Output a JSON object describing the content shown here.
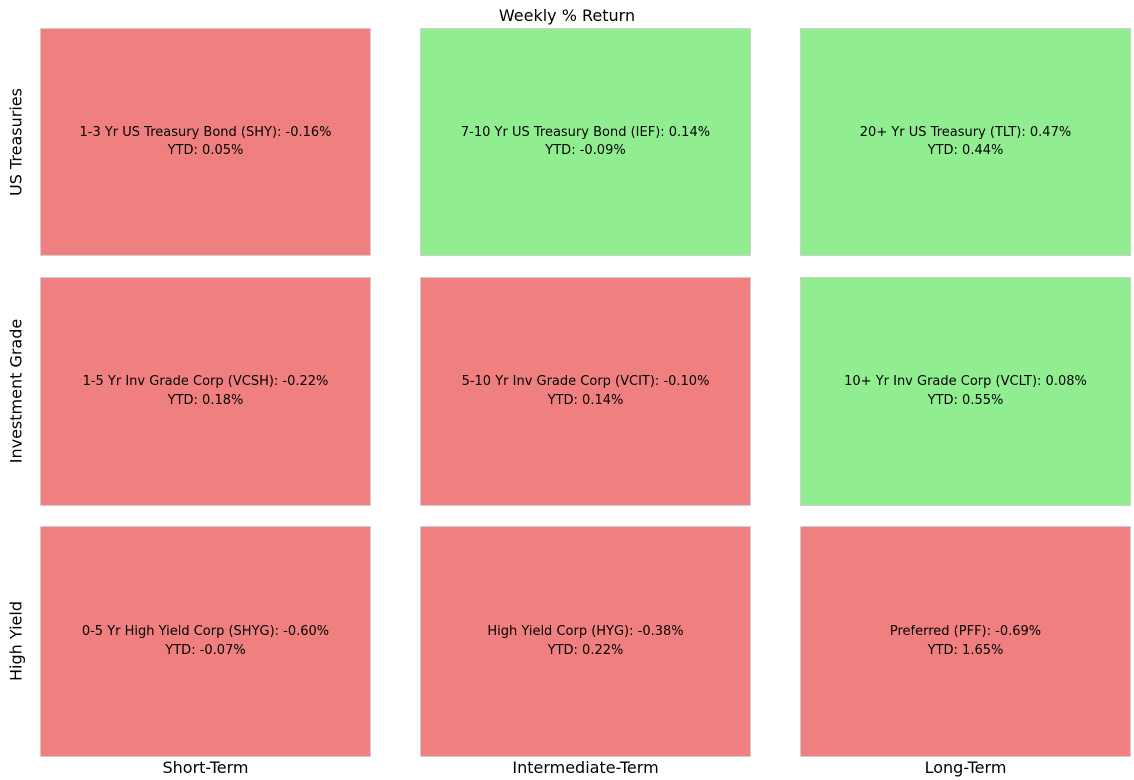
{
  "title": "Weekly % Return",
  "colors": {
    "positive": "#90ee90",
    "negative": "#f08080",
    "background": "#ffffff",
    "text": "#000000"
  },
  "rows": [
    "US Treasuries",
    "Investment Grade",
    "High Yield"
  ],
  "columns": [
    "Short-Term",
    "Intermediate-Term",
    "Long-Term"
  ],
  "chart_data": {
    "type": "heatmap",
    "title": "Weekly % Return",
    "x_categories": [
      "Short-Term",
      "Intermediate-Term",
      "Long-Term"
    ],
    "y_categories": [
      "US Treasuries",
      "Investment Grade",
      "High Yield"
    ],
    "legend": "cell color: green = positive weekly return, red = negative weekly return",
    "cells": [
      {
        "row": "US Treasuries",
        "col": "Short-Term",
        "name": "1-3 Yr US Treasury Bond",
        "ticker": "SHY",
        "weekly_pct": -0.16,
        "ytd_pct": 0.05,
        "label": "1-3 Yr US Treasury Bond (SHY): -0.16%",
        "ytd_label": "YTD: 0.05%",
        "color": "#f08080"
      },
      {
        "row": "US Treasuries",
        "col": "Intermediate-Term",
        "name": "7-10 Yr US Treasury Bond",
        "ticker": "IEF",
        "weekly_pct": 0.14,
        "ytd_pct": -0.09,
        "label": "7-10 Yr US Treasury Bond (IEF): 0.14%",
        "ytd_label": "YTD: -0.09%",
        "color": "#90ee90"
      },
      {
        "row": "US Treasuries",
        "col": "Long-Term",
        "name": "20+ Yr US Treasury",
        "ticker": "TLT",
        "weekly_pct": 0.47,
        "ytd_pct": 0.44,
        "label": "20+ Yr US Treasury (TLT): 0.47%",
        "ytd_label": "YTD: 0.44%",
        "color": "#90ee90"
      },
      {
        "row": "Investment Grade",
        "col": "Short-Term",
        "name": "1-5 Yr Inv Grade Corp",
        "ticker": "VCSH",
        "weekly_pct": -0.22,
        "ytd_pct": 0.18,
        "label": "1-5 Yr Inv Grade Corp (VCSH): -0.22%",
        "ytd_label": "YTD: 0.18%",
        "color": "#f08080"
      },
      {
        "row": "Investment Grade",
        "col": "Intermediate-Term",
        "name": "5-10 Yr Inv Grade Corp",
        "ticker": "VCIT",
        "weekly_pct": -0.1,
        "ytd_pct": 0.14,
        "label": "5-10 Yr Inv Grade Corp (VCIT): -0.10%",
        "ytd_label": "YTD: 0.14%",
        "color": "#f08080"
      },
      {
        "row": "Investment Grade",
        "col": "Long-Term",
        "name": "10+ Yr Inv Grade Corp",
        "ticker": "VCLT",
        "weekly_pct": 0.08,
        "ytd_pct": 0.55,
        "label": "10+ Yr Inv Grade Corp (VCLT): 0.08%",
        "ytd_label": "YTD: 0.55%",
        "color": "#90ee90"
      },
      {
        "row": "High Yield",
        "col": "Short-Term",
        "name": "0-5 Yr High Yield Corp",
        "ticker": "SHYG",
        "weekly_pct": -0.6,
        "ytd_pct": -0.07,
        "label": "0-5 Yr High Yield Corp (SHYG): -0.60%",
        "ytd_label": "YTD: -0.07%",
        "color": "#f08080"
      },
      {
        "row": "High Yield",
        "col": "Intermediate-Term",
        "name": "High Yield Corp",
        "ticker": "HYG",
        "weekly_pct": -0.38,
        "ytd_pct": 0.22,
        "label": "High Yield Corp (HYG): -0.38%",
        "ytd_label": "YTD: 0.22%",
        "color": "#f08080"
      },
      {
        "row": "High Yield",
        "col": "Long-Term",
        "name": "Preferred",
        "ticker": "PFF",
        "weekly_pct": -0.69,
        "ytd_pct": 1.65,
        "label": "Preferred (PFF): -0.69%",
        "ytd_label": "YTD: 1.65%",
        "color": "#f08080"
      }
    ]
  }
}
